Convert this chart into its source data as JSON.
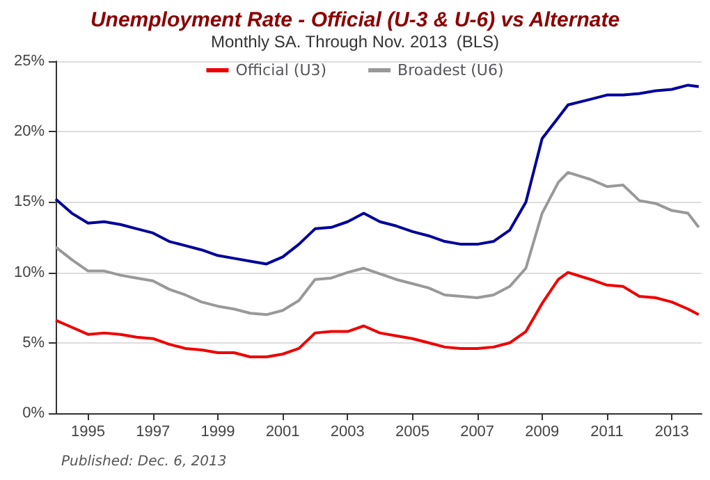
{
  "chart_data": {
    "type": "line",
    "title": "Unemployment Rate - Official (U-3 & U-6) vs Alternate",
    "subtitle": "Monthly SA. Through Nov. 2013  (BLS)",
    "x": [
      1994,
      1994.5,
      1995,
      1995.5,
      1996,
      1996.5,
      1997,
      1997.5,
      1998,
      1998.5,
      1999,
      1999.5,
      2000,
      2000.5,
      2001,
      2001.5,
      2002,
      2002.5,
      2003,
      2003.5,
      2004,
      2004.5,
      2005,
      2005.5,
      2006,
      2006.5,
      2007,
      2007.5,
      2008,
      2008.5,
      2009,
      2009.5,
      2009.8,
      2010.5,
      2011,
      2011.5,
      2012,
      2012.5,
      2013,
      2013.5,
      2013.83
    ],
    "series": [
      {
        "name": "Official (U3)",
        "color": "#ee0000",
        "values": [
          6.6,
          6.1,
          5.6,
          5.7,
          5.6,
          5.4,
          5.3,
          4.9,
          4.6,
          4.5,
          4.3,
          4.3,
          4.0,
          4.0,
          4.2,
          4.6,
          5.7,
          5.8,
          5.8,
          6.2,
          5.7,
          5.5,
          5.3,
          5.0,
          4.7,
          4.6,
          4.6,
          4.7,
          5.0,
          5.8,
          7.8,
          9.5,
          10.0,
          9.5,
          9.1,
          9.0,
          8.3,
          8.2,
          7.9,
          7.4,
          7.0
        ]
      },
      {
        "name": "Broadest (U6)",
        "color": "#999999",
        "values": [
          11.8,
          10.9,
          10.1,
          10.1,
          9.8,
          9.6,
          9.4,
          8.8,
          8.4,
          7.9,
          7.6,
          7.4,
          7.1,
          7.0,
          7.3,
          8.0,
          9.5,
          9.6,
          10.0,
          10.3,
          9.9,
          9.5,
          9.2,
          8.9,
          8.4,
          8.3,
          8.2,
          8.4,
          9.0,
          10.3,
          14.2,
          16.4,
          17.1,
          16.6,
          16.1,
          16.2,
          15.1,
          14.9,
          14.4,
          14.2,
          13.2
        ]
      },
      {
        "color": "#000099",
        "values": [
          15.2,
          14.2,
          13.5,
          13.6,
          13.4,
          13.1,
          12.8,
          12.2,
          11.9,
          11.6,
          11.2,
          11.0,
          10.8,
          10.6,
          11.1,
          12.0,
          13.1,
          13.2,
          13.6,
          14.2,
          13.6,
          13.3,
          12.9,
          12.6,
          12.2,
          12.0,
          12.0,
          12.2,
          13.0,
          15.0,
          19.5,
          21.0,
          21.9,
          22.3,
          22.6,
          22.6,
          22.7,
          22.9,
          23.0,
          23.3,
          23.2
        ]
      }
    ],
    "xlim": [
      1994,
      2013.92
    ],
    "xticks": [
      1995,
      1997,
      1999,
      2001,
      2003,
      2005,
      2007,
      2009,
      2011,
      2013
    ],
    "ylim": [
      0,
      25
    ],
    "yticks": [
      {
        "value": 0,
        "label": "0%"
      },
      {
        "value": 5,
        "label": "5%"
      },
      {
        "value": 10,
        "label": "10%"
      },
      {
        "value": 15,
        "label": "15%"
      },
      {
        "value": 20,
        "label": "20%"
      },
      {
        "value": 25,
        "label": "25%"
      }
    ],
    "grid": "y",
    "legend": "top",
    "marker": "none",
    "line_style": "solid",
    "annotations": [
      "Published: Dec. 6, 2013"
    ]
  }
}
